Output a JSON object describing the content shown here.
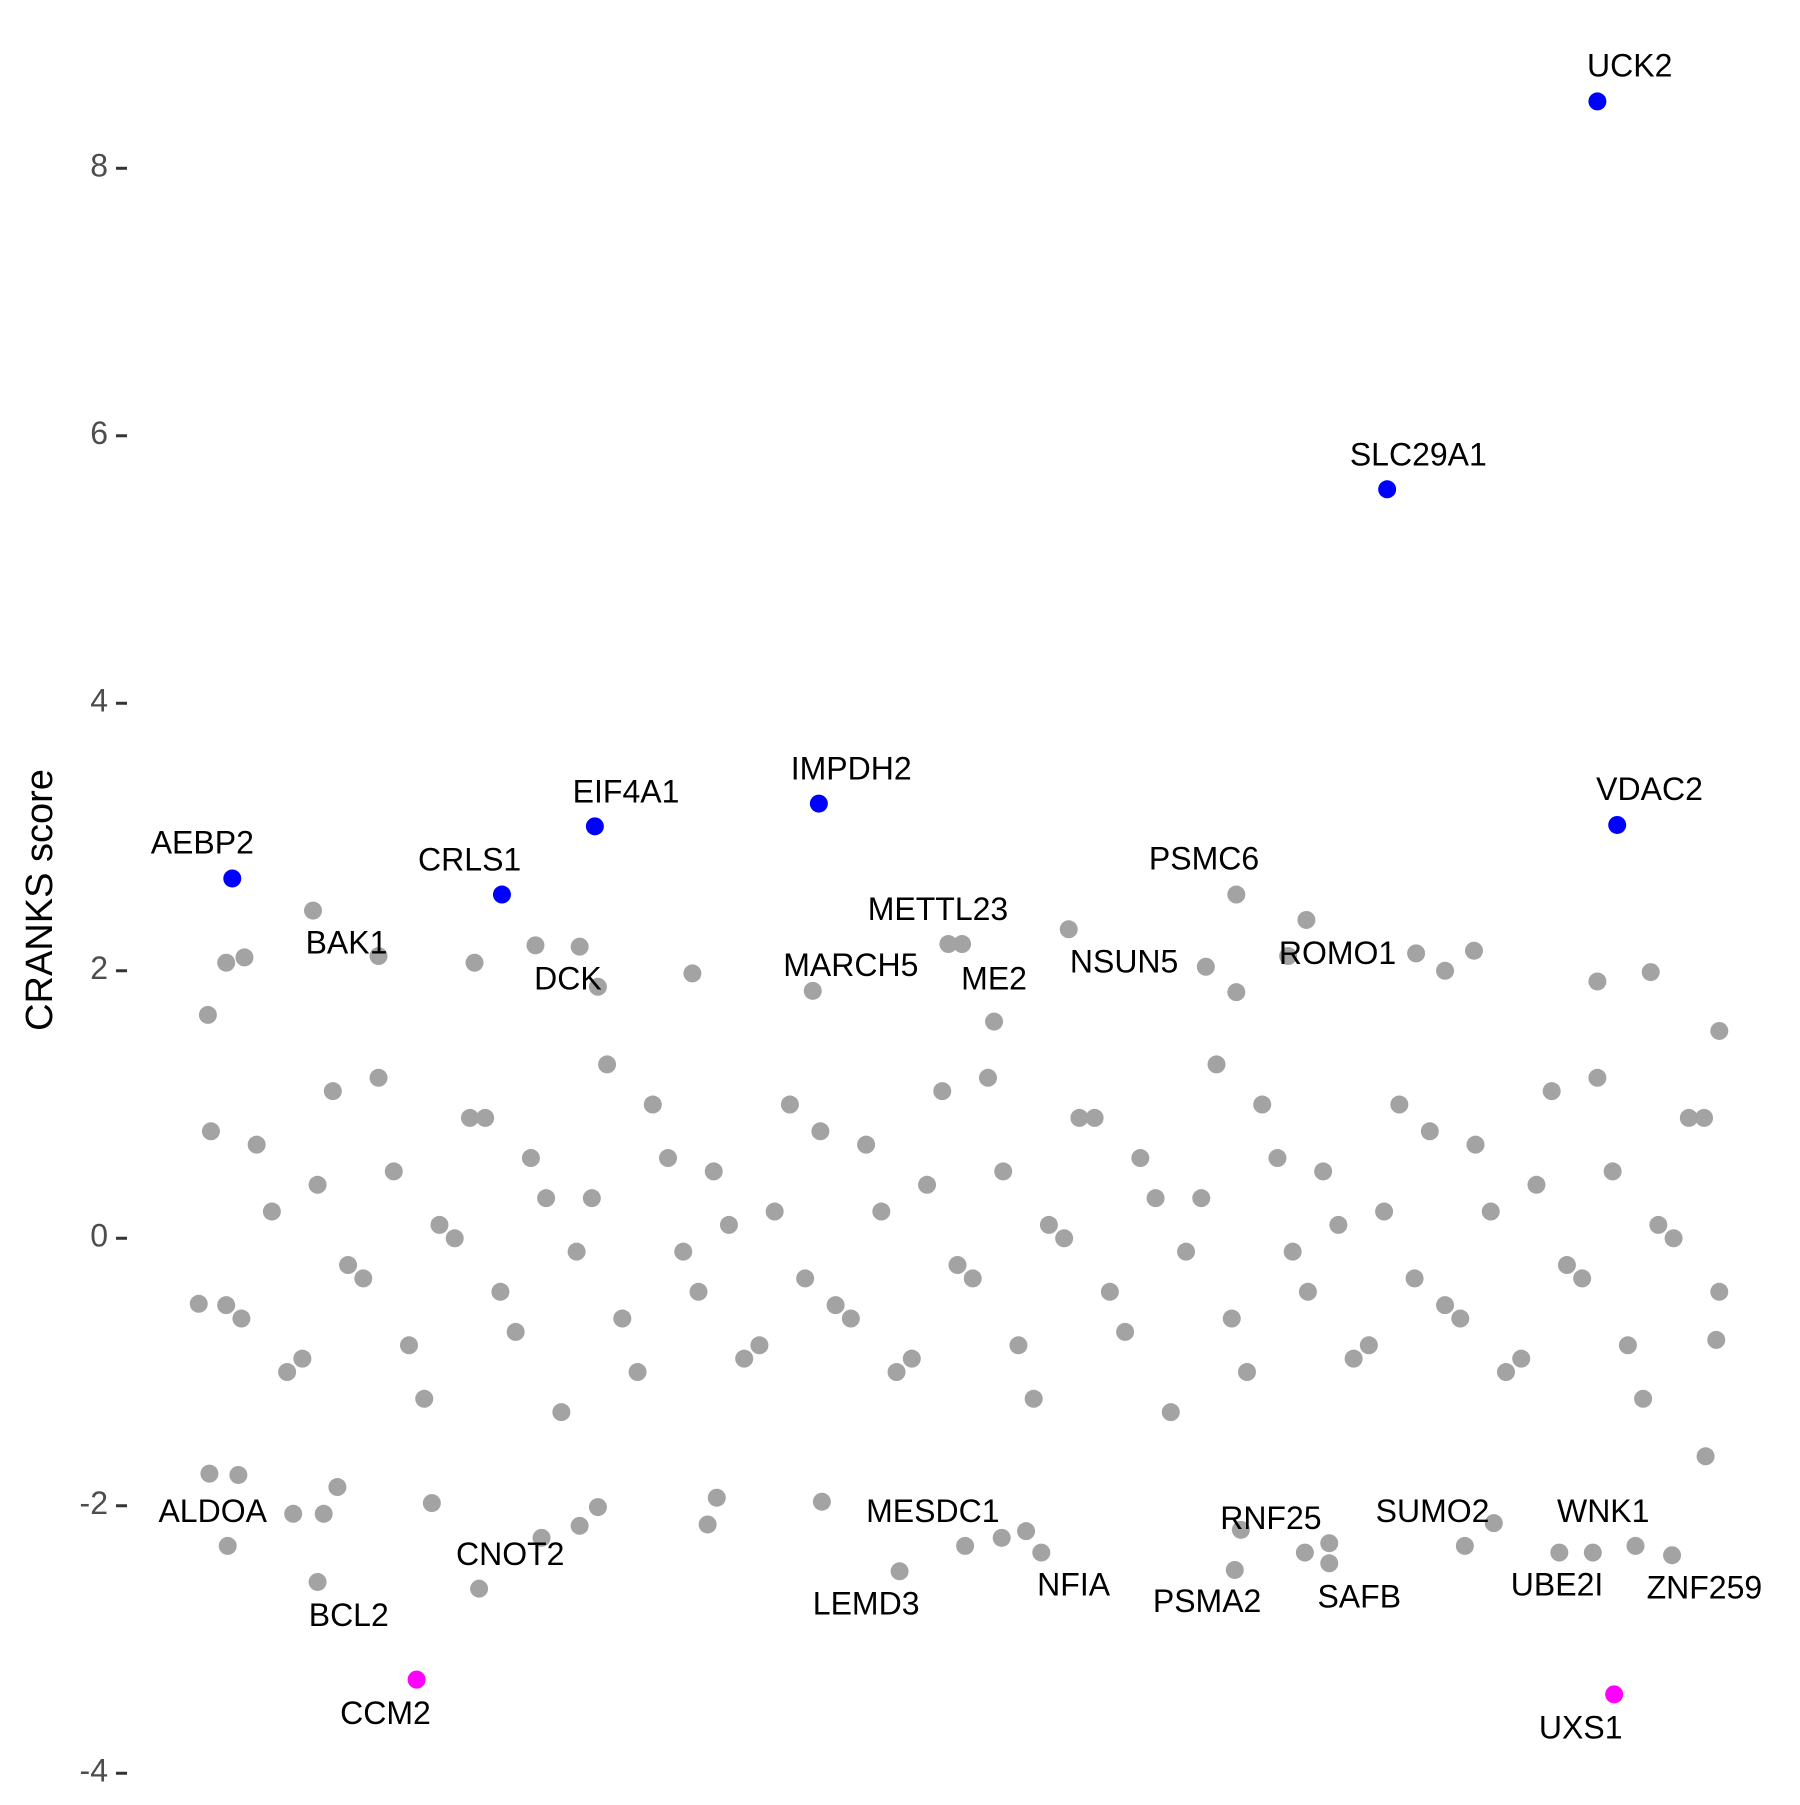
{
  "chart_data": {
    "type": "scatter",
    "ylabel": "CRANKS score",
    "xlim": [
      -3,
      103
    ],
    "ylim": [
      -4.2,
      8.9
    ],
    "yticks": [
      -4,
      -2,
      0,
      2,
      4,
      6,
      8
    ],
    "series": [
      {
        "color": "#a3a3a3",
        "x": [
          1,
          3,
          5,
          7,
          9,
          11,
          13,
          15,
          17,
          19,
          21,
          23,
          25,
          27,
          29,
          31,
          33,
          35,
          37,
          39,
          41,
          43,
          45,
          47,
          49,
          51,
          53,
          55,
          57,
          59,
          61,
          63,
          65,
          67,
          69,
          71,
          73,
          75,
          77,
          79,
          81,
          83,
          85,
          87,
          89,
          91,
          93,
          95,
          97,
          99,
          2,
          4,
          6,
          8,
          10,
          12,
          14,
          16,
          18,
          20,
          22,
          24,
          26,
          28,
          30,
          32,
          34,
          36,
          38,
          40,
          42,
          44,
          46,
          48,
          50,
          52,
          54,
          56,
          58,
          60,
          62,
          64,
          66,
          68,
          70,
          72,
          74,
          76,
          78,
          80,
          82,
          84,
          86,
          88,
          90,
          92,
          94,
          96,
          98,
          100,
          0.9,
          2.8,
          6.4,
          8.4,
          9.3,
          15.5,
          22.7,
          25.2,
          26.4,
          33.6,
          34.2,
          41.1,
          54.5,
          52.9,
          72.8,
          74.4,
          85.2,
          94.5,
          99.1,
          3.2,
          2.0,
          12.0,
          22.3,
          25.2,
          32.6,
          18.3,
          50.3,
          66.3,
          80.1,
          83.9,
          92.0,
          95.5,
          100,
          82,
          71.7,
          68.3,
          0.8,
          99.8,
          0.2
        ],
        "y": [
          0.8,
          -0.6,
          0.2,
          -0.9,
          1.1,
          -0.3,
          0.5,
          -1.2,
          0.0,
          0.9,
          -0.7,
          0.3,
          -0.1,
          1.3,
          -1.0,
          0.6,
          -0.4,
          0.1,
          -0.8,
          1.0,
          0.8,
          -0.6,
          0.2,
          -0.9,
          1.1,
          -0.3,
          0.5,
          -1.2,
          0.0,
          0.9,
          -0.7,
          0.3,
          -0.1,
          1.3,
          -1.0,
          0.6,
          -0.4,
          0.1,
          -0.8,
          1.0,
          0.8,
          -0.6,
          0.2,
          -0.9,
          1.1,
          -0.3,
          0.5,
          -1.2,
          0.0,
          0.9,
          -0.5,
          0.7,
          -1.0,
          0.4,
          -0.2,
          1.2,
          -0.8,
          0.1,
          0.9,
          -0.4,
          0.6,
          -1.3,
          0.3,
          -0.6,
          1.0,
          -0.1,
          0.5,
          -0.9,
          0.2,
          -0.3,
          -0.5,
          0.7,
          -1.0,
          0.4,
          -0.2,
          1.2,
          -0.8,
          0.1,
          0.9,
          -0.4,
          0.6,
          -1.3,
          0.3,
          -0.6,
          1.0,
          -0.1,
          0.5,
          -0.9,
          0.2,
          -0.3,
          -0.5,
          0.7,
          -1.0,
          0.4,
          -0.2,
          1.2,
          -0.8,
          0.1,
          0.9,
          -0.4,
          -1.76,
          -1.77,
          -2.06,
          -2.06,
          -1.86,
          -1.98,
          -2.24,
          -2.15,
          -2.01,
          -2.14,
          -1.94,
          -1.97,
          -2.19,
          -2.24,
          -2.35,
          -2.28,
          -2.13,
          -2.3,
          -1.63,
          2.1,
          2.06,
          2.11,
          2.19,
          2.18,
          1.98,
          2.06,
          2.2,
          2.03,
          2.13,
          2.15,
          1.92,
          1.99,
          1.55,
          2.0,
          2.11,
          1.84,
          1.67,
          -0.76,
          -0.49
        ]
      },
      {
        "color": "#a3a3a3",
        "labels": [
          "BAK1",
          "DCK",
          "METTL23",
          "MARCH5",
          "ME2",
          "NSUN5",
          "PSMC6",
          "ROMO1",
          "ALDOA",
          "BCL2",
          "CNOT2",
          "MESDC1",
          "LEMD3",
          "NFIA",
          "RNF25",
          "PSMA2",
          "SAFB",
          "SUMO2",
          "WNK1",
          "UBE2I",
          "ZNF259"
        ],
        "x": [
          7.7,
          26.4,
          49.4,
          40.5,
          52.4,
          57.3,
          68.3,
          72.9,
          2.1,
          8.0,
          18.6,
          50.5,
          46.2,
          55.5,
          68.6,
          68.2,
          74.4,
          83.3,
          91.7,
          89.5,
          96.9
        ],
        "y": [
          2.45,
          1.88,
          2.2,
          1.85,
          1.62,
          2.31,
          2.57,
          2.38,
          -2.3,
          -2.57,
          -2.62,
          -2.3,
          -2.49,
          -2.35,
          -2.18,
          -2.48,
          -2.43,
          -2.3,
          -2.35,
          -2.35,
          -2.37
        ]
      },
      {
        "color": "#0000ff",
        "labels": [
          "UCK2",
          "SLC29A1",
          "IMPDH2",
          "EIF4A1",
          "VDAC2",
          "AEBP2",
          "CRLS1"
        ],
        "x": [
          92.0,
          78.2,
          40.9,
          26.2,
          93.3,
          2.4,
          20.1
        ],
        "y": [
          8.5,
          5.6,
          3.25,
          3.08,
          3.09,
          2.69,
          2.57
        ]
      },
      {
        "color": "#ff00ff",
        "labels": [
          "CCM2",
          "UXS1"
        ],
        "x": [
          14.5,
          93.1
        ],
        "y": [
          -3.3,
          -3.41
        ]
      }
    ]
  }
}
